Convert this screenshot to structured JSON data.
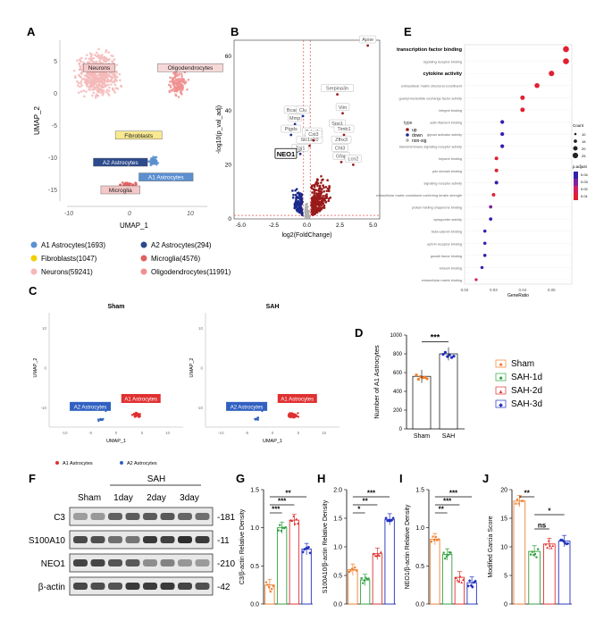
{
  "panel_letters": {
    "a": "A",
    "b": "B",
    "c": "C",
    "d": "D",
    "e": "E",
    "f": "F",
    "g": "G",
    "h": "H",
    "i": "I",
    "j": "J"
  },
  "colors": {
    "a1": "#e03030",
    "a2": "#3060c0",
    "neurons": "#f4b8b8",
    "micro": "#e06060",
    "fibro": "#f0d000",
    "astro_a1": "#5b8fd0",
    "astro_a2": "#2c4a8c",
    "olig": "#f09090",
    "sham": "#f08030",
    "d1": "#30a040",
    "d2": "#e03030",
    "d3": "#2030c0",
    "up": "#9a1a1a",
    "down": "#1a2a8a",
    "nonsig": "#b0b0b0"
  },
  "chart_data": [
    {
      "id": "A",
      "type": "scatter",
      "title": "",
      "xlabel": "UMAP_1",
      "ylabel": "UMAP_2",
      "x_ticks": [
        "-10",
        "0",
        "10"
      ],
      "y_ticks": [
        "5",
        "0",
        "-5",
        "-10",
        "-15"
      ],
      "clusters": [
        {
          "name": "Neurons",
          "label": "Neurons",
          "cx": -5,
          "cy": 3
        },
        {
          "name": "Oligodendrocytes",
          "label": "Oligodendrocytes",
          "cx": 8,
          "cy": 3
        },
        {
          "name": "Fibroblasts",
          "label": "Fibroblasts",
          "cx": 0,
          "cy": -6.5
        },
        {
          "name": "A2 Astrocytes",
          "label": "A2 Astrocytes",
          "cx": -2,
          "cy": -10.5
        },
        {
          "name": "Microglia",
          "label": "Microglia",
          "cx": 0,
          "cy": -15
        },
        {
          "name": "A1 Astrocytes",
          "label": "A1 Astrocytes",
          "cx": 5,
          "cy": -13
        }
      ],
      "legend": [
        "A1 Astrocytes(1693)",
        "A2 Astrocytes(294)",
        "Fibroblasts(1047)",
        "Microglia(4576)",
        "Neurons(59241)",
        "Oligodendrocytes(11991)"
      ]
    },
    {
      "id": "B",
      "type": "scatter",
      "title": "",
      "xlabel": "log2(FoldChange)",
      "ylabel": "-log10(p_val_adj)",
      "x_ticks": [
        "-5.0",
        "-2.5",
        "0.0",
        "2.5",
        "5.0"
      ],
      "y_ticks": [
        "0",
        "20",
        "40",
        "60"
      ],
      "xlim": [
        -5.5,
        5.5
      ],
      "ylim": [
        0,
        66
      ],
      "series": [
        "up",
        "down",
        "non-sig"
      ],
      "genes": [
        {
          "name": "Apoe",
          "x": 4.6,
          "y": 64
        },
        {
          "name": "Serpina3n",
          "x": 2.3,
          "y": 46
        },
        {
          "name": "Vim",
          "x": 2.7,
          "y": 39
        },
        {
          "name": "Bcan",
          "x": -1.1,
          "y": 38
        },
        {
          "name": "Clu",
          "x": -0.3,
          "y": 38
        },
        {
          "name": "Mmp",
          "x": -0.9,
          "y": 35
        },
        {
          "name": "Ptgds",
          "x": -1.2,
          "y": 31
        },
        {
          "name": "Spp1",
          "x": 2.3,
          "y": 33
        },
        {
          "name": "Timb1",
          "x": 2.8,
          "y": 31
        },
        {
          "name": "Tuba1",
          "x": 0.4,
          "y": 30
        },
        {
          "name": "Slc1a10",
          "x": 0.2,
          "y": 27
        },
        {
          "name": "Cst3",
          "x": 0.5,
          "y": 29
        },
        {
          "name": "Zfhx3",
          "x": 2.6,
          "y": 27
        },
        {
          "name": "Tpi1",
          "x": -0.5,
          "y": 24
        },
        {
          "name": "Chl3",
          "x": 2.5,
          "y": 24
        },
        {
          "name": "Gfap",
          "x": 2.6,
          "y": 21
        },
        {
          "name": "Lcn2",
          "x": 3.5,
          "y": 20
        }
      ],
      "highlight": "NEO1"
    },
    {
      "id": "C",
      "type": "scatter",
      "xlabel": "UMAP_1",
      "ylabel": "UMAP_2",
      "subplots": [
        "Sham",
        "SAH"
      ],
      "labels": [
        "A2 Astrocytes",
        "A1 Astrocytes"
      ],
      "x_ticks": [
        "-10",
        "-5",
        "0",
        "5",
        "10"
      ],
      "y_ticks": [
        "10",
        "0",
        "-10"
      ],
      "legend": [
        "A1 Astrocytes",
        "A2 Astrocytes"
      ]
    },
    {
      "id": "D",
      "type": "bar",
      "ylabel": "Number of A1 Astrocytes",
      "categories": [
        "Sham",
        "SAH"
      ],
      "values": [
        560,
        800
      ],
      "ylim": [
        0,
        1000
      ],
      "y_ticks": [
        "0",
        "200",
        "400",
        "600",
        "800",
        "1000"
      ],
      "significance": [
        "***"
      ],
      "legend": [
        "Sham",
        "SAH-1d",
        "SAH-2d",
        "SAH-3d"
      ]
    },
    {
      "id": "G",
      "type": "bar",
      "ylabel": "C3/β-actin Relative Density",
      "categories": [
        "Sham",
        "SAH-1d",
        "SAH-2d",
        "SAH-3d"
      ],
      "values": [
        0.25,
        1.0,
        1.1,
        0.72
      ],
      "ylim": [
        0,
        1.5
      ],
      "y_ticks": [
        "0.0",
        "0.5",
        "1.0",
        "1.5"
      ],
      "significance": [
        "***",
        "***",
        "**"
      ]
    },
    {
      "id": "H",
      "type": "bar",
      "ylabel": "S100A10/β-actin Relative Density",
      "categories": [
        "Sham",
        "SAH-1d",
        "SAH-2d",
        "SAH-3d"
      ],
      "values": [
        0.6,
        0.42,
        0.88,
        1.48
      ],
      "ylim": [
        0,
        2.0
      ],
      "y_ticks": [
        "0.0",
        "0.5",
        "1.0",
        "1.5",
        "2.0"
      ],
      "significance": [
        "*",
        "**",
        "***"
      ]
    },
    {
      "id": "I",
      "type": "bar",
      "ylabel": "NEO1/β-actin Relative Density",
      "categories": [
        "Sham",
        "SAH-1d",
        "SAH-2d",
        "SAH-3d"
      ],
      "values": [
        0.85,
        0.65,
        0.35,
        0.28
      ],
      "ylim": [
        0,
        1.5
      ],
      "y_ticks": [
        "0.0",
        "0.5",
        "1.0",
        "1.5"
      ],
      "significance": [
        "**",
        "***",
        "***"
      ]
    },
    {
      "id": "J",
      "type": "bar",
      "ylabel": "Modified Garcia Score",
      "categories": [
        "Sham",
        "SAH-1d",
        "SAH-2d",
        "SAH-3d"
      ],
      "values": [
        18,
        9.2,
        10.5,
        11
      ],
      "ylim": [
        0,
        20
      ],
      "y_ticks": [
        "0",
        "5",
        "10",
        "15",
        "20"
      ],
      "significance": [
        "**",
        "ns",
        "*"
      ]
    },
    {
      "id": "E",
      "type": "scatter",
      "xlabel": "GeneRatio",
      "x_ticks": [
        "0.02",
        "0.03",
        "0.04",
        "0.05"
      ],
      "terms": [
        {
          "name": "transcription factor binding",
          "ratio": 0.055,
          "padj": 0.001
        },
        {
          "name": "signaling receptor binding",
          "ratio": 0.055,
          "padj": 0.001
        },
        {
          "name": "cytokine activity",
          "ratio": 0.05,
          "padj": 0.002
        },
        {
          "name": "extracellular matrix structural constituent",
          "ratio": 0.045,
          "padj": 0.002
        },
        {
          "name": "guanyl-nucleotide exchange factor activity",
          "ratio": 0.04,
          "padj": 0.002
        },
        {
          "name": "integrin binding",
          "ratio": 0.04,
          "padj": 0.002
        },
        {
          "name": "actin filament binding",
          "ratio": 0.033,
          "padj": 0.04
        },
        {
          "name": "glycan activator activity",
          "ratio": 0.033,
          "padj": 0.045
        },
        {
          "name": "transmembrane signaling receptor activity",
          "ratio": 0.033,
          "padj": 0.04
        },
        {
          "name": "heparin binding",
          "ratio": 0.031,
          "padj": 0.004
        },
        {
          "name": "pdz domain binding",
          "ratio": 0.031,
          "padj": 0.005
        },
        {
          "name": "signaling receptor activity",
          "ratio": 0.031,
          "padj": 0.04
        },
        {
          "name": "extracellular matrix constituent conferring tensile strength",
          "ratio": 0.03,
          "padj": 0.003
        },
        {
          "name": "protein folding chaperone binding",
          "ratio": 0.029,
          "padj": 0.03
        },
        {
          "name": "sympporter activity",
          "ratio": 0.029,
          "padj": 0.04
        },
        {
          "name": "beta-catenin binding",
          "ratio": 0.027,
          "padj": 0.045
        },
        {
          "name": "ephrin receptor binding",
          "ratio": 0.027,
          "padj": 0.045
        },
        {
          "name": "growth factor binding",
          "ratio": 0.027,
          "padj": 0.045
        },
        {
          "name": "kinesin binding",
          "ratio": 0.026,
          "padj": 0.045
        },
        {
          "name": "extracellular matrix binding",
          "ratio": 0.024,
          "padj": 0.01
        }
      ],
      "legend_type": [
        "up",
        "down",
        "non-sig"
      ],
      "count_title": "Count",
      "count_values": [
        "10",
        "15",
        "20",
        "25"
      ],
      "padj_title": "p.adjust",
      "padj_values": [
        "0.04",
        "0.03",
        "0.02",
        "0.01"
      ]
    },
    {
      "id": "F",
      "type": "table",
      "title": "SAH",
      "columns": [
        "Sham",
        "1day",
        "2day",
        "3day"
      ],
      "rows": [
        {
          "name": "C3",
          "kda": "-181"
        },
        {
          "name": "S100A10",
          "kda": "-11"
        },
        {
          "name": "NEO1",
          "kda": "-210"
        },
        {
          "name": "β-actin",
          "kda": "-42"
        }
      ]
    }
  ]
}
